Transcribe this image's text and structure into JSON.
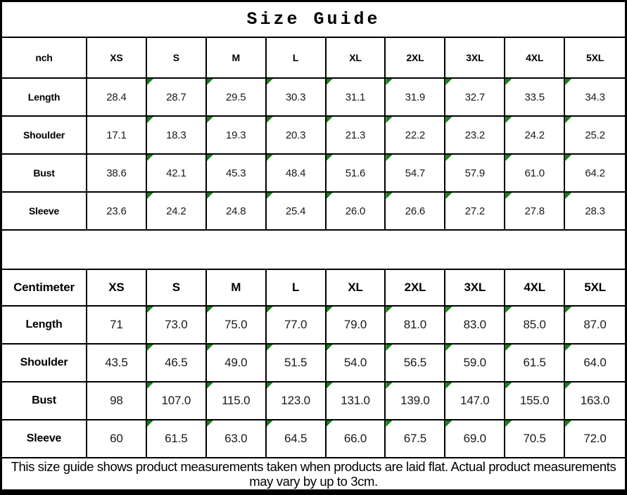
{
  "title": "Size Guide",
  "colors": {
    "triangle_indicator_green": "#168016",
    "border": "#000000",
    "background": "#ffffff",
    "text": "#000000"
  },
  "chart_data": [
    {
      "type": "table",
      "title": "Size Guide",
      "unit_label": "nch",
      "columns": [
        "nch",
        "XS",
        "S",
        "M",
        "L",
        "XL",
        "2XL",
        "3XL",
        "4XL",
        "5XL"
      ],
      "rows": [
        [
          "Length",
          "28.4",
          "28.7",
          "29.5",
          "30.3",
          "31.1",
          "31.9",
          "32.7",
          "33.5",
          "34.3"
        ],
        [
          "Shoulder",
          "17.1",
          "18.3",
          "19.3",
          "20.3",
          "21.3",
          "22.2",
          "23.2",
          "24.2",
          "25.2"
        ],
        [
          "Bust",
          "38.6",
          "42.1",
          "45.3",
          "48.4",
          "51.6",
          "54.7",
          "57.9",
          "61.0",
          "64.2"
        ],
        [
          "Sleeve",
          "23.6",
          "24.2",
          "24.8",
          "25.4",
          "26.0",
          "26.6",
          "27.2",
          "27.8",
          "28.3"
        ]
      ],
      "note": "green corner indicator on S through 5XL value cells"
    },
    {
      "type": "table",
      "unit_label": "Centimeter",
      "columns": [
        "Centimeter",
        "XS",
        "S",
        "M",
        "L",
        "XL",
        "2XL",
        "3XL",
        "4XL",
        "5XL"
      ],
      "rows": [
        [
          "Length",
          "71",
          "73.0",
          "75.0",
          "77.0",
          "79.0",
          "81.0",
          "83.0",
          "85.0",
          "87.0"
        ],
        [
          "Shoulder",
          "43.5",
          "46.5",
          "49.0",
          "51.5",
          "54.0",
          "56.5",
          "59.0",
          "61.5",
          "64.0"
        ],
        [
          "Bust",
          "98",
          "107.0",
          "115.0",
          "123.0",
          "131.0",
          "139.0",
          "147.0",
          "155.0",
          "163.0"
        ],
        [
          "Sleeve",
          "60",
          "61.5",
          "63.0",
          "64.5",
          "66.0",
          "67.5",
          "69.0",
          "70.5",
          "72.0"
        ]
      ],
      "note": "green corner indicator on S through 5XL value cells"
    }
  ],
  "footer": {
    "line1": "This size guide shows product measurements taken when products are laid flat. Actual product measurements",
    "line2": "may vary by up to 3cm."
  }
}
